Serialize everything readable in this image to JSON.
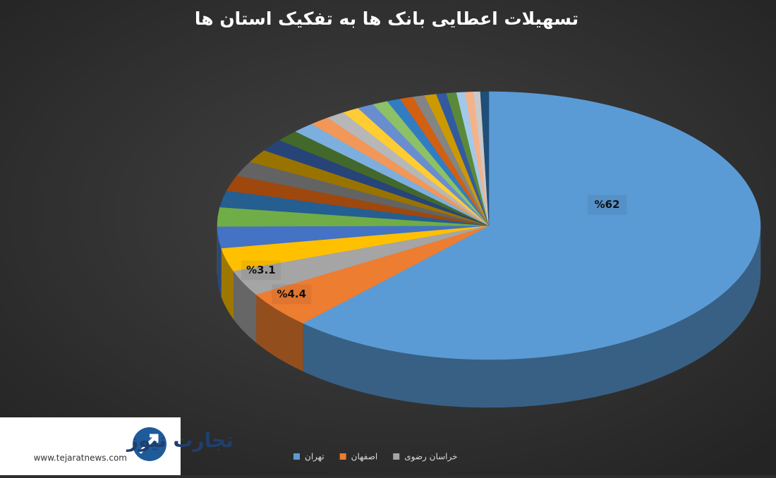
{
  "chart_data": {
    "type": "pie",
    "title": "تسهیلات اعطایی بانک ها به تفکیک استان ها",
    "categories": [
      "تهران",
      "اصفهان",
      "خراسان رضوی",
      null,
      null,
      null,
      null,
      null,
      null,
      null,
      null,
      null,
      null,
      null,
      null,
      null,
      null,
      null,
      null,
      null,
      null,
      null,
      null,
      null,
      null,
      null,
      null,
      null
    ],
    "values": [
      62,
      4.4,
      3.1,
      2.8,
      2.6,
      2.3,
      2,
      1.9,
      1.8,
      1.6,
      1.5,
      1.4,
      1.3,
      1.2,
      1.1,
      1,
      1,
      0.9,
      0.8,
      0.8,
      0.7,
      0.7,
      0.6,
      0.6,
      0.5,
      0.5,
      0.4,
      0.5
    ],
    "value_labels": [
      "%62",
      "%4.4",
      "%3.1",
      null,
      null,
      null,
      null,
      null,
      null,
      null,
      null,
      null,
      null,
      null,
      null,
      null,
      null,
      null,
      null,
      null,
      null,
      null,
      null,
      null,
      null,
      null,
      null,
      null
    ],
    "colors": [
      "#5b9bd5",
      "#ed7d31",
      "#a5a5a5",
      "#ffc000",
      "#4472c4",
      "#70ad47",
      "#255e91",
      "#9e480e",
      "#636363",
      "#997300",
      "#264478",
      "#43682b",
      "#7cafdd",
      "#f1975a",
      "#b7b7b7",
      "#ffcd33",
      "#698ed0",
      "#8cc168",
      "#327dc2",
      "#d26012",
      "#848484",
      "#cc9a00",
      "#335aa1",
      "#5a8a39",
      "#a3c9ea",
      "#f5b28a",
      "#c9c9c9",
      "#1f4e79"
    ],
    "legend": "bottom"
  },
  "logo": {
    "name": "تجارت نیوز",
    "url": "www.tejaratnews.com"
  }
}
